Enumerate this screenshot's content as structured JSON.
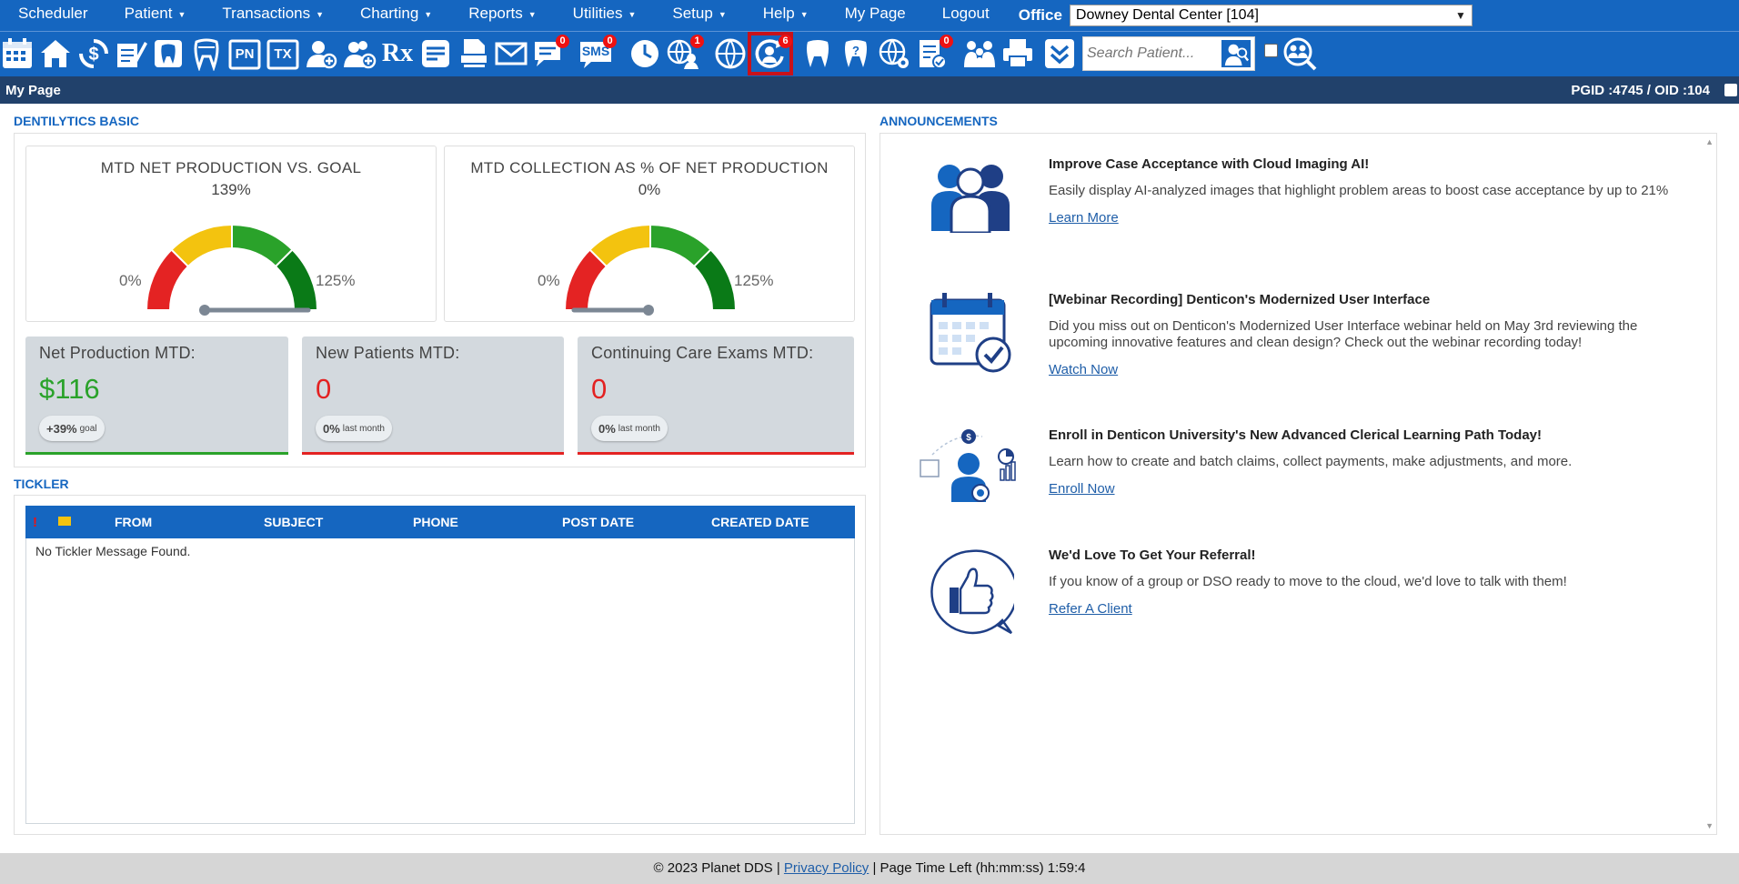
{
  "menu": {
    "items": [
      {
        "label": "Scheduler",
        "caret": false
      },
      {
        "label": "Patient",
        "caret": true
      },
      {
        "label": "Transactions",
        "caret": true
      },
      {
        "label": "Charting",
        "caret": true
      },
      {
        "label": "Reports",
        "caret": true
      },
      {
        "label": "Utilities",
        "caret": true
      },
      {
        "label": "Setup",
        "caret": true
      },
      {
        "label": "Help",
        "caret": true
      },
      {
        "label": "My Page",
        "caret": false
      },
      {
        "label": "Logout",
        "caret": false
      }
    ],
    "office_label": "Office",
    "office_value": "Downey Dental Center [104]"
  },
  "toolbar": {
    "pn_label": "PN",
    "tx_label": "TX",
    "rx_label": "Rx",
    "sms_label": "SMS",
    "messages_badge": "0",
    "sms_badge": "0",
    "web_badge": "1",
    "selected_badge": "6",
    "claims_badge": "0",
    "search_placeholder": "Search Patient..."
  },
  "titlebar": {
    "title": "My Page",
    "ids": "PGID :4745  /  OID :104"
  },
  "dentilytics": {
    "section_label": "DENTILYTICS BASIC",
    "gauges": [
      {
        "title": "MTD NET PRODUCTION VS. GOAL",
        "value": "139%",
        "min": "0%",
        "max": "125%",
        "level": 1.0
      },
      {
        "title": "MTD COLLECTION AS % OF NET PRODUCTION",
        "value": "0%",
        "min": "0%",
        "max": "125%",
        "level": 0.0
      }
    ],
    "kpis": [
      {
        "title": "Net Production MTD:",
        "value": "$116",
        "pill_value": "+39%",
        "pill_note": "goal",
        "color": "#2aa22a"
      },
      {
        "title": "New Patients MTD:",
        "value": "0",
        "pill_value": "0%",
        "pill_note": "last month",
        "color": "#e32222"
      },
      {
        "title": "Continuing Care Exams MTD:",
        "value": "0",
        "pill_value": "0%",
        "pill_note": "last month",
        "color": "#e32222"
      }
    ]
  },
  "tickler": {
    "section_label": "TICKLER",
    "columns": [
      "!",
      "FROM",
      "SUBJECT",
      "PHONE",
      "POST DATE",
      "CREATED DATE"
    ],
    "empty_message": "No Tickler Message Found."
  },
  "announcements": {
    "section_label": "ANNOUNCEMENTS",
    "items": [
      {
        "title": "Improve Case Acceptance with Cloud Imaging AI!",
        "desc": "Easily display AI-analyzed images that highlight problem areas to boost case acceptance by up to 21%",
        "link": "Learn More",
        "icon": "people-group-icon"
      },
      {
        "title": "[Webinar Recording] Denticon's Modernized User Interface",
        "desc": "Did you miss out on Denticon's Modernized User Interface webinar held on May 3rd reviewing the upcoming innovative features and clean design? Check out the webinar recording today!",
        "link": "Watch Now",
        "icon": "calendar-check-icon"
      },
      {
        "title": "Enroll in Denticon University's New Advanced Clerical Learning Path Today!",
        "desc": "Learn how to create and batch claims, collect payments, make adjustments, and more.",
        "link": "Enroll Now",
        "icon": "learner-icon"
      },
      {
        "title": "We'd Love To Get Your Referral!",
        "desc": "If you know of a group or DSO ready to move to the cloud, we'd love to talk with them!",
        "link": "Refer A Client",
        "icon": "thumbs-up-icon"
      }
    ]
  },
  "footer": {
    "copyright": "© 2023 Planet DDS |",
    "privacy": "Privacy Policy",
    "time_left": "|  Page Time Left (hh:mm:ss) 1:59:4"
  },
  "colors": {
    "brand_blue": "#1566c0",
    "title_navy": "#21416b",
    "gauge_red": "#e42323",
    "gauge_yellow": "#f3c30f",
    "gauge_green": "#2aa22a",
    "gauge_darkgreen": "#0a7a17"
  }
}
